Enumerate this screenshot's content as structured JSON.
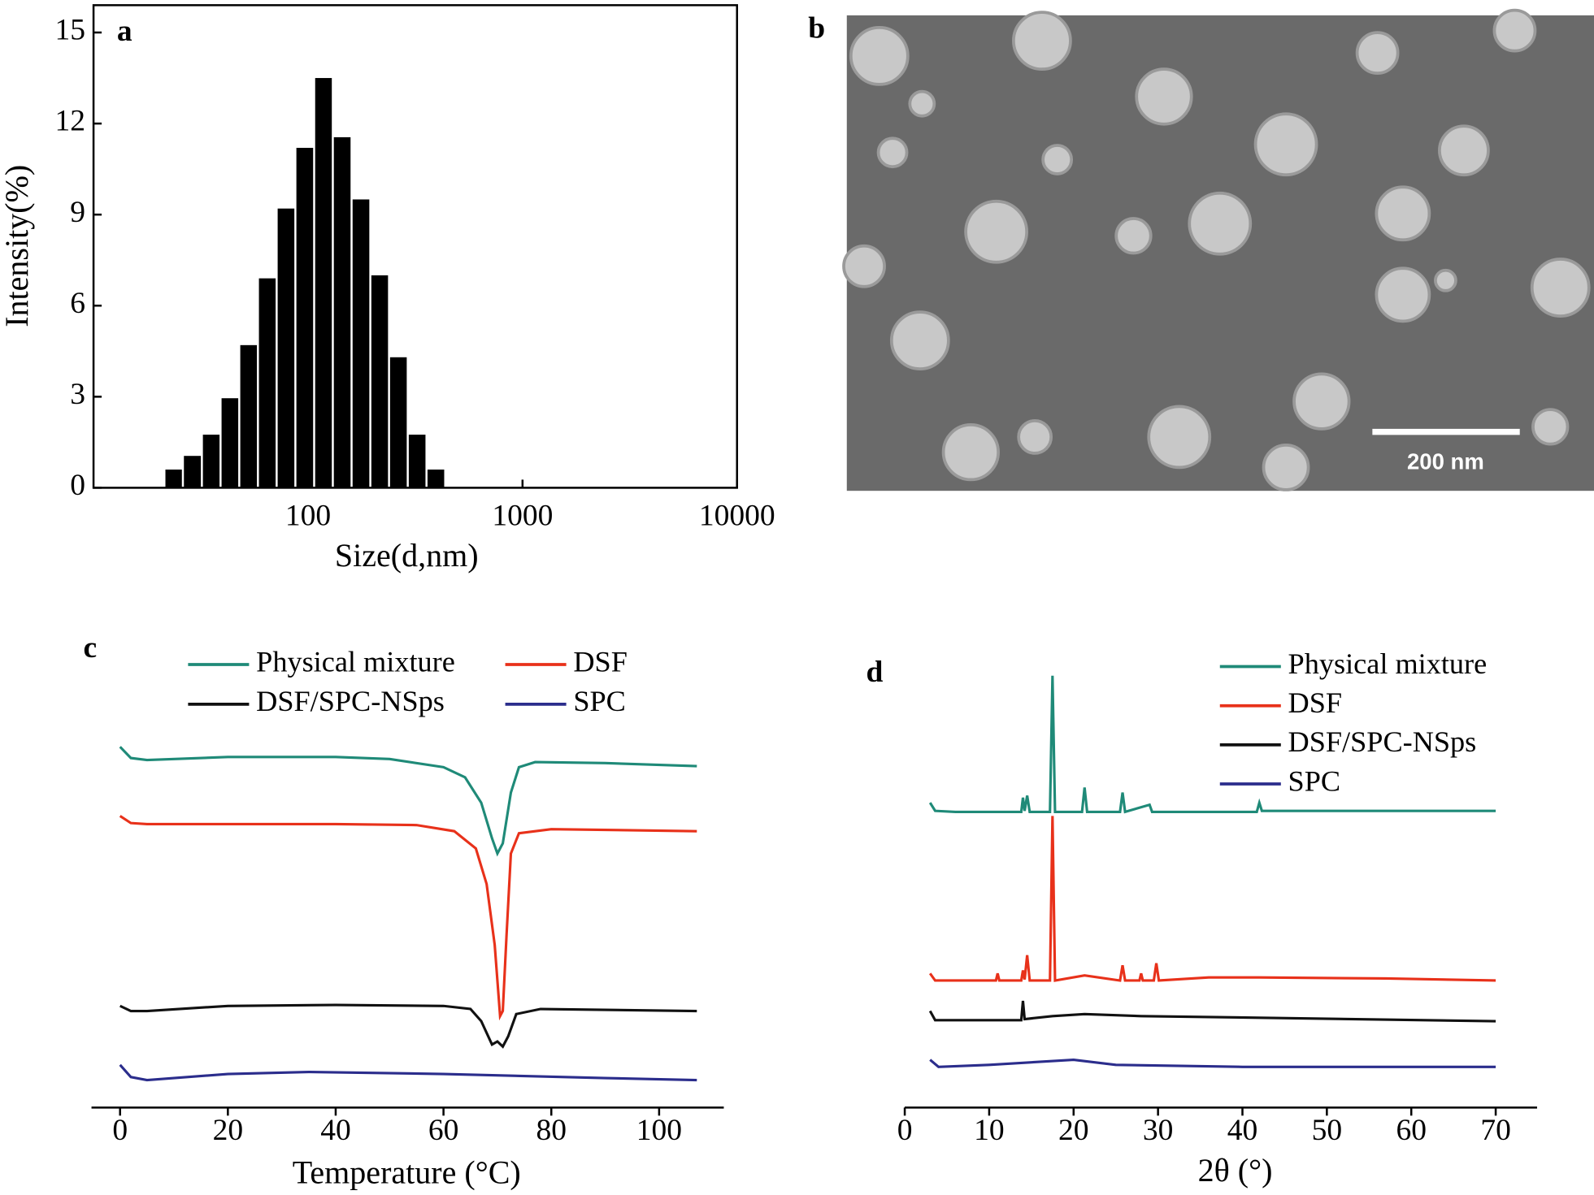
{
  "chart_data": [
    {
      "type": "histogram",
      "panel_label": "a",
      "xlabel": "Size(d,nm)",
      "ylabel": "Intensity(%)",
      "xscale": "log",
      "bins": [
        21.4,
        26.1,
        32.0,
        39.1,
        47.8,
        58.4,
        71.4,
        87.3,
        106.8,
        130.5,
        159.6,
        195.2,
        238.6,
        291.7,
        356.7,
        436.1
      ],
      "values": [
        0.6,
        1.05,
        1.75,
        2.95,
        4.7,
        6.9,
        9.2,
        11.2,
        13.5,
        11.55,
        9.5,
        7.0,
        4.3,
        1.75,
        0.6
      ],
      "color": "#000000",
      "xlim": [
        10,
        10000
      ],
      "ylim": [
        0,
        15.9
      ],
      "xticks": [
        100,
        1000,
        10000
      ],
      "yticks": [
        0,
        3,
        6,
        9,
        12,
        15
      ]
    },
    {
      "type": "line",
      "panel_label": "c",
      "xlabel": "Temperature (°C)",
      "legend_position": "top",
      "xlim": [
        -5.3,
        112
      ],
      "ylim": [
        0,
        39
      ],
      "xticks": [
        0,
        20,
        40,
        60,
        80,
        100
      ],
      "series": [
        {
          "name": "Physical mixture",
          "color": "#1f8a78",
          "x": [
            0,
            2,
            5,
            20,
            40,
            50,
            60,
            64,
            67,
            69,
            70,
            71,
            72.5,
            74,
            77,
            90,
            107
          ],
          "values": [
            35.5,
            34.4,
            34.2,
            34.5,
            34.5,
            34.3,
            33.5,
            32.5,
            30,
            26.5,
            25,
            26,
            31,
            33.5,
            34,
            33.9,
            33.6
          ]
        },
        {
          "name": "DSF",
          "color": "#e8311a",
          "x": [
            0,
            2,
            5,
            40,
            55,
            62,
            66,
            68,
            69.5,
            70.5,
            71,
            71.7,
            72.5,
            74,
            80,
            107
          ],
          "values": [
            28.7,
            28,
            27.9,
            27.9,
            27.8,
            27.2,
            25.5,
            22,
            16,
            9,
            9.5,
            17,
            25,
            27,
            27.4,
            27.2
          ]
        },
        {
          "name": "DSF/SPC-NSps",
          "color": "#111111",
          "x": [
            0,
            2,
            5,
            20,
            40,
            60,
            65,
            67,
            69,
            70,
            71,
            72,
            73.5,
            78,
            107
          ],
          "values": [
            10,
            9.5,
            9.5,
            10,
            10.1,
            10,
            9.7,
            8.5,
            6.2,
            6.5,
            6,
            7,
            9.2,
            9.7,
            9.5
          ]
        },
        {
          "name": "SPC",
          "color": "#2b2d8c",
          "x": [
            0,
            2,
            5,
            20,
            35,
            60,
            90,
            107
          ],
          "values": [
            4.2,
            3,
            2.7,
            3.3,
            3.5,
            3.3,
            2.9,
            2.7
          ]
        }
      ]
    },
    {
      "type": "line",
      "panel_label": "d",
      "xlabel": "2θ (°)",
      "legend_position": "upper right",
      "xlim": [
        0,
        74.9
      ],
      "ylim": [
        0,
        39
      ],
      "xticks": [
        0,
        10,
        20,
        30,
        40,
        50,
        60,
        70
      ],
      "series": [
        {
          "name": "Physical mixture",
          "color": "#1f8a78",
          "x": [
            3,
            3.6,
            6,
            13.8,
            14,
            14.2,
            14.5,
            14.8,
            17.2,
            17.5,
            17.8,
            21,
            21.3,
            21.6,
            25.5,
            25.8,
            26.1,
            29,
            29.3,
            41.7,
            42,
            42.3,
            70
          ],
          "values": [
            30,
            29.2,
            29.1,
            29.1,
            30.5,
            29.2,
            30.7,
            29.1,
            29.1,
            42.5,
            29.1,
            29.1,
            31.5,
            29.1,
            29.1,
            31,
            29.1,
            29.8,
            29.1,
            29.1,
            30,
            29.2,
            29.2
          ]
        },
        {
          "name": "DSF",
          "color": "#e8311a",
          "x": [
            3,
            3.6,
            10.8,
            11,
            11.2,
            13.8,
            14,
            14.2,
            14.5,
            14.8,
            17.2,
            17.5,
            17.8,
            21.3,
            25.5,
            25.8,
            26.1,
            27.8,
            28,
            28.2,
            29.5,
            29.8,
            30.1,
            36,
            42,
            57,
            70
          ],
          "values": [
            13.2,
            12.5,
            12.5,
            13.2,
            12.5,
            12.5,
            13.5,
            12.6,
            15,
            12.5,
            12.5,
            28.7,
            12.5,
            13,
            12.5,
            14,
            12.5,
            12.5,
            13.2,
            12.5,
            12.5,
            14.2,
            12.5,
            12.8,
            12.8,
            12.7,
            12.5
          ]
        },
        {
          "name": "DSF/SPC-NSps",
          "color": "#111111",
          "x": [
            3,
            3.6,
            13.8,
            14,
            14.2,
            17.5,
            21.3,
            28,
            70
          ],
          "values": [
            9.5,
            8.6,
            8.6,
            10.5,
            8.7,
            9,
            9.2,
            9,
            8.5
          ]
        },
        {
          "name": "SPC",
          "color": "#2b2d8c",
          "x": [
            3,
            4,
            10,
            20,
            25,
            40,
            70
          ],
          "values": [
            4.7,
            4,
            4.2,
            4.7,
            4.2,
            4,
            4
          ]
        }
      ]
    }
  ],
  "panel_b": {
    "label": "b",
    "scale_bar": "200 nm"
  }
}
